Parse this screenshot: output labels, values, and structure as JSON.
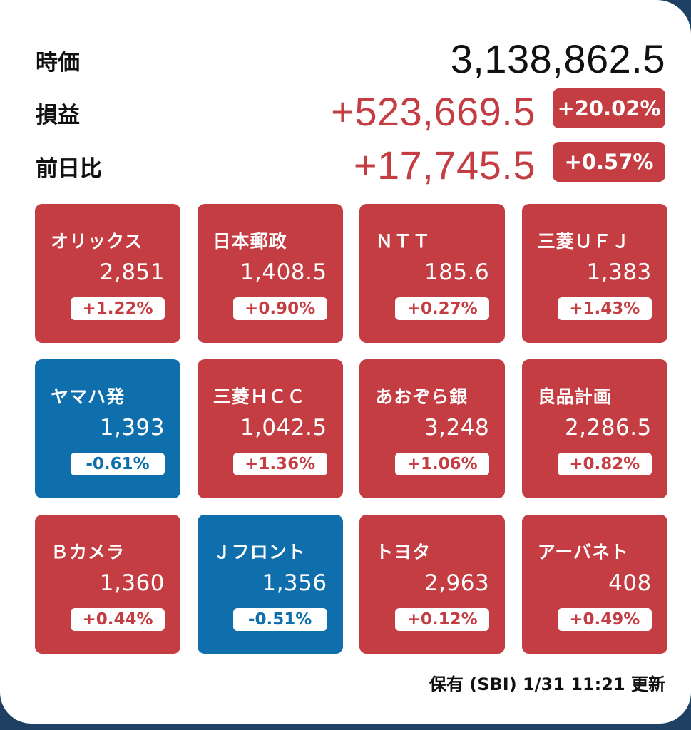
{
  "summary": {
    "market_value": {
      "label": "時価",
      "value": "3,138,862.5"
    },
    "profit_loss": {
      "label": "損益",
      "value": "+523,669.5",
      "percent": "+20.02%"
    },
    "day_change": {
      "label": "前日比",
      "value": "+17,745.5",
      "percent": "+0.57%"
    }
  },
  "colors": {
    "up": "#c43d42",
    "down": "#0f6fac"
  },
  "stocks": [
    {
      "name": "オリックス",
      "price": "2,851",
      "change": "+1.22%",
      "direction": "up"
    },
    {
      "name": "日本郵政",
      "price": "1,408.5",
      "change": "+0.90%",
      "direction": "up"
    },
    {
      "name": "ＮＴＴ",
      "price": "185.6",
      "change": "+0.27%",
      "direction": "up"
    },
    {
      "name": "三菱ＵＦＪ",
      "price": "1,383",
      "change": "+1.43%",
      "direction": "up"
    },
    {
      "name": "ヤマハ発",
      "price": "1,393",
      "change": "-0.61%",
      "direction": "down"
    },
    {
      "name": "三菱ＨＣＣ",
      "price": "1,042.5",
      "change": "+1.36%",
      "direction": "up"
    },
    {
      "name": "あおぞら銀",
      "price": "3,248",
      "change": "+1.06%",
      "direction": "up"
    },
    {
      "name": "良品計画",
      "price": "2,286.5",
      "change": "+0.82%",
      "direction": "up"
    },
    {
      "name": "Ｂカメラ",
      "price": "1,360",
      "change": "+0.44%",
      "direction": "up"
    },
    {
      "name": "Ｊフロント",
      "price": "1,356",
      "change": "-0.51%",
      "direction": "down"
    },
    {
      "name": "トヨタ",
      "price": "2,963",
      "change": "+0.12%",
      "direction": "up"
    },
    {
      "name": "アーバネト",
      "price": "408",
      "change": "+0.49%",
      "direction": "up"
    }
  ],
  "footer": {
    "text": "保有 (SBI) 1/31 11:21 更新"
  }
}
